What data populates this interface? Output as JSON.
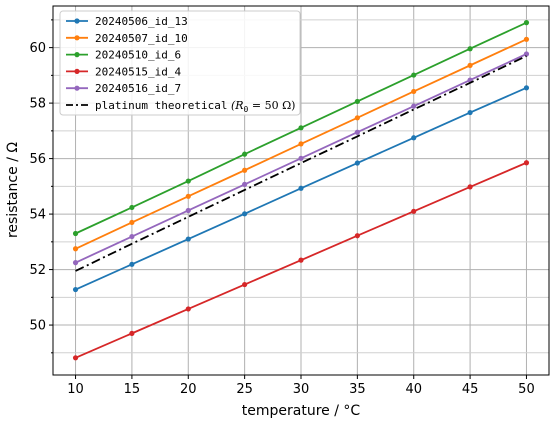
{
  "chart_data": {
    "type": "line",
    "title": "",
    "xlabel": "temperature / °C",
    "ylabel": "resistance / Ω",
    "xlim": [
      8,
      52
    ],
    "ylim": [
      48.2,
      61.5
    ],
    "xticks": [
      10,
      15,
      20,
      25,
      30,
      35,
      40,
      45,
      50
    ],
    "yticks": [
      50,
      52,
      54,
      56,
      58,
      60
    ],
    "grid": true,
    "legend_position": "top-left",
    "x": [
      10,
      15,
      20,
      25,
      30,
      35,
      40,
      45,
      50
    ],
    "series": [
      {
        "name": "20240506_id_13",
        "color": "#1f77b4",
        "marker": "circle",
        "linestyle": "solid",
        "values": [
          51.28,
          52.19,
          53.1,
          54.01,
          54.93,
          55.84,
          56.75,
          57.66,
          58.55
        ]
      },
      {
        "name": "20240507_id_10",
        "color": "#ff7f0e",
        "marker": "circle",
        "linestyle": "solid",
        "values": [
          52.75,
          53.7,
          54.64,
          55.58,
          56.53,
          57.47,
          58.42,
          59.36,
          60.3
        ]
      },
      {
        "name": "20240510_id_6",
        "color": "#2ca02c",
        "marker": "circle",
        "linestyle": "solid",
        "values": [
          53.3,
          54.24,
          55.19,
          56.16,
          57.11,
          58.06,
          59.01,
          59.96,
          60.9
        ]
      },
      {
        "name": "20240515_id_4",
        "color": "#d62728",
        "marker": "circle",
        "linestyle": "solid",
        "values": [
          48.82,
          49.7,
          50.58,
          51.46,
          52.34,
          53.22,
          54.1,
          54.98,
          55.85
        ]
      },
      {
        "name": "20240516_id_7",
        "color": "#9467bd",
        "marker": "circle",
        "linestyle": "solid",
        "values": [
          52.25,
          53.19,
          54.13,
          55.07,
          56.01,
          56.95,
          57.89,
          58.83,
          59.77
        ]
      },
      {
        "name": "platinum theoretical",
        "name_suffix": "(R",
        "name_sub": "0",
        "name_tail": " = 50 Ω)",
        "color": "#000000",
        "marker": "none",
        "linestyle": "dashdot",
        "values": [
          51.95,
          52.93,
          53.9,
          54.87,
          55.84,
          56.8,
          57.77,
          58.73,
          59.7
        ]
      }
    ]
  }
}
